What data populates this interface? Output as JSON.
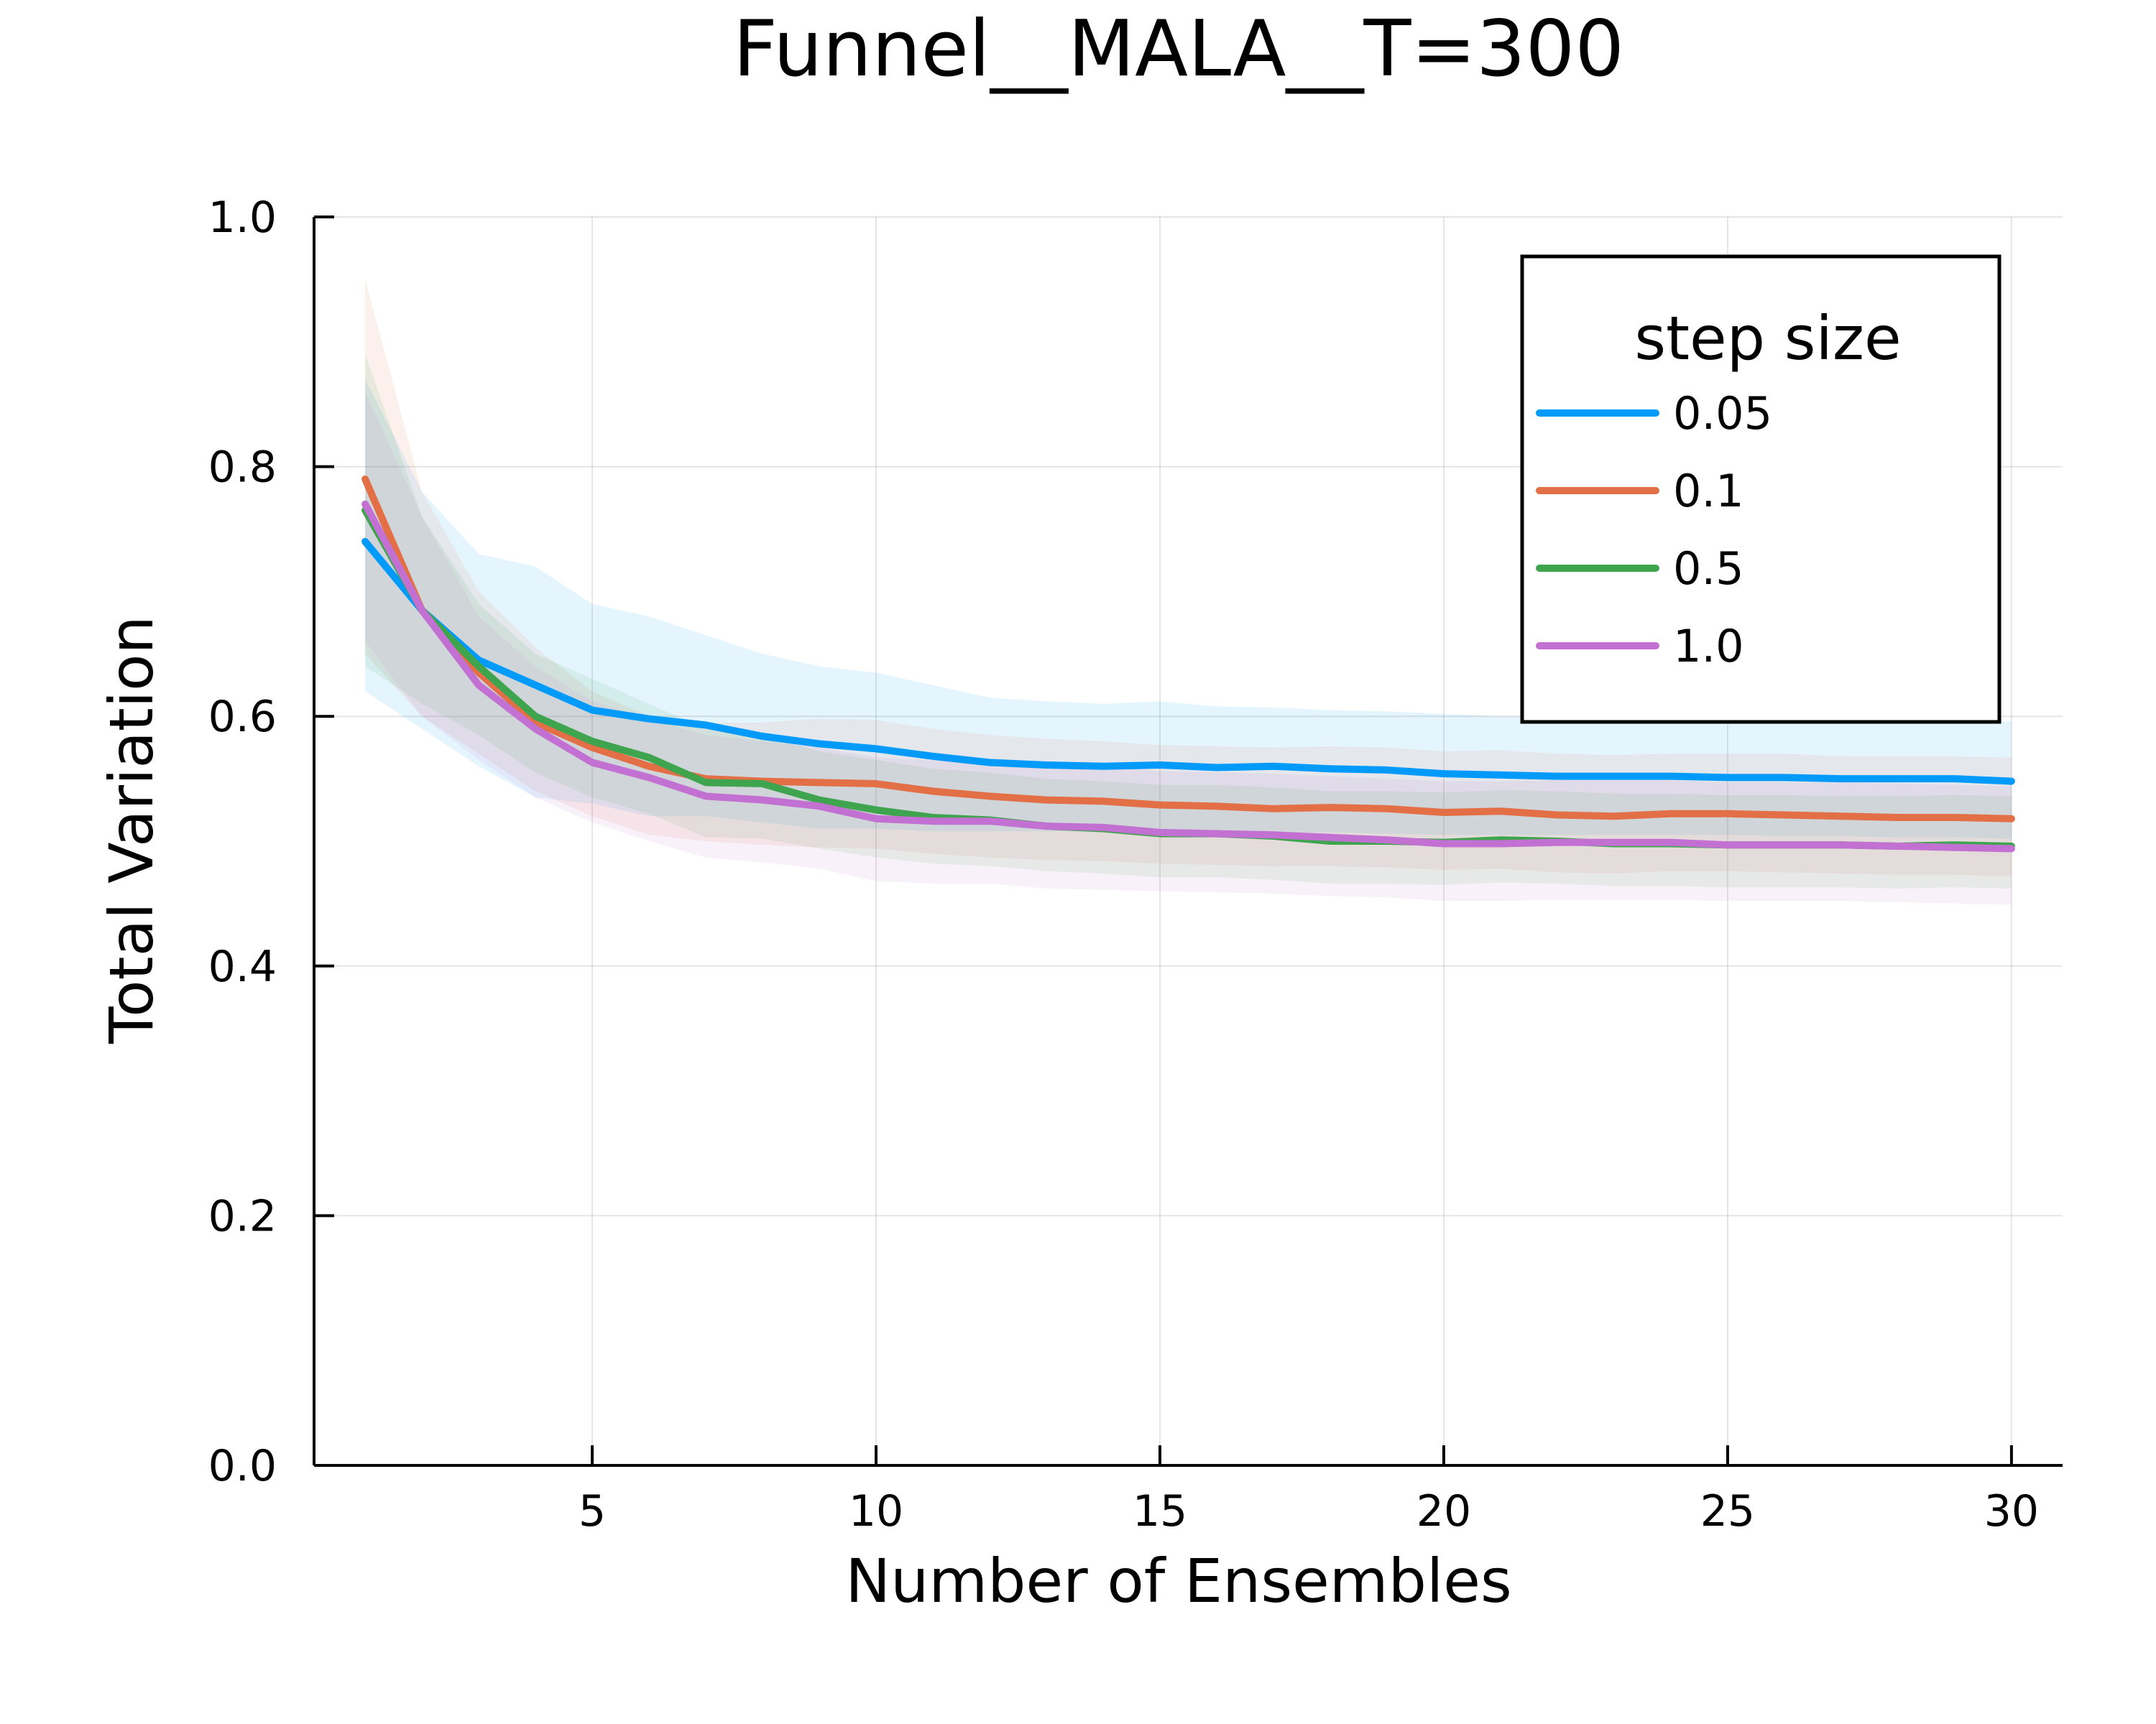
{
  "chart_data": {
    "type": "line",
    "title": "Funnel__MALA__T=300",
    "xlabel": "Number of Ensembles",
    "ylabel": "Total Variation",
    "xlim": [
      0.1,
      30.9
    ],
    "ylim": [
      0,
      1
    ],
    "xticks": [
      5,
      10,
      15,
      20,
      25,
      30
    ],
    "yticks": [
      0.0,
      0.2,
      0.4,
      0.6,
      0.8,
      1.0
    ],
    "xtick_labels": [
      "5",
      "10",
      "15",
      "20",
      "25",
      "30"
    ],
    "ytick_labels": [
      "0.0",
      "0.2",
      "0.4",
      "0.6",
      "0.8",
      "1.0"
    ],
    "grid": true,
    "legend": {
      "title": "step size",
      "position": "top-right"
    },
    "x": [
      1,
      2,
      3,
      4,
      5,
      6,
      7,
      8,
      9,
      10,
      11,
      12,
      13,
      14,
      15,
      16,
      17,
      18,
      19,
      20,
      21,
      22,
      23,
      24,
      25,
      26,
      27,
      28,
      29,
      30
    ],
    "series": [
      {
        "name": "0.05",
        "color": "#009AFA",
        "values": [
          0.74,
          0.685,
          0.645,
          0.625,
          0.605,
          0.598,
          0.593,
          0.584,
          0.578,
          0.574,
          0.568,
          0.563,
          0.561,
          0.56,
          0.561,
          0.559,
          0.56,
          0.558,
          0.557,
          0.554,
          0.553,
          0.552,
          0.552,
          0.552,
          0.551,
          0.551,
          0.55,
          0.55,
          0.55,
          0.548
        ],
        "upper": [
          0.87,
          0.78,
          0.73,
          0.72,
          0.69,
          0.68,
          0.665,
          0.65,
          0.64,
          0.635,
          0.625,
          0.615,
          0.612,
          0.61,
          0.612,
          0.608,
          0.607,
          0.605,
          0.604,
          0.602,
          0.6,
          0.6,
          0.599,
          0.599,
          0.598,
          0.598,
          0.597,
          0.597,
          0.597,
          0.596
        ],
        "lower": [
          0.62,
          0.59,
          0.56,
          0.535,
          0.53,
          0.52,
          0.52,
          0.515,
          0.51,
          0.51,
          0.508,
          0.508,
          0.508,
          0.508,
          0.508,
          0.508,
          0.507,
          0.507,
          0.506,
          0.505,
          0.505,
          0.505,
          0.505,
          0.505,
          0.505,
          0.504,
          0.504,
          0.503,
          0.503,
          0.502
        ]
      },
      {
        "name": "0.1",
        "color": "#E36F47",
        "values": [
          0.79,
          0.685,
          0.635,
          0.595,
          0.575,
          0.56,
          0.55,
          0.548,
          0.547,
          0.546,
          0.54,
          0.536,
          0.533,
          0.532,
          0.529,
          0.528,
          0.526,
          0.527,
          0.526,
          0.523,
          0.524,
          0.521,
          0.52,
          0.522,
          0.522,
          0.521,
          0.52,
          0.519,
          0.519,
          0.518
        ],
        "upper": [
          0.95,
          0.78,
          0.7,
          0.655,
          0.62,
          0.6,
          0.595,
          0.595,
          0.598,
          0.597,
          0.59,
          0.585,
          0.582,
          0.58,
          0.577,
          0.576,
          0.575,
          0.576,
          0.575,
          0.572,
          0.573,
          0.57,
          0.569,
          0.57,
          0.57,
          0.57,
          0.568,
          0.568,
          0.568,
          0.567
        ],
        "lower": [
          0.65,
          0.6,
          0.57,
          0.54,
          0.52,
          0.505,
          0.5,
          0.497,
          0.495,
          0.494,
          0.49,
          0.487,
          0.485,
          0.484,
          0.482,
          0.481,
          0.48,
          0.48,
          0.479,
          0.477,
          0.478,
          0.475,
          0.474,
          0.476,
          0.476,
          0.475,
          0.474,
          0.473,
          0.473,
          0.472
        ]
      },
      {
        "name": "0.5",
        "color": "#3EA44E",
        "values": [
          0.765,
          0.685,
          0.64,
          0.6,
          0.58,
          0.567,
          0.547,
          0.546,
          0.533,
          0.525,
          0.519,
          0.517,
          0.512,
          0.51,
          0.506,
          0.506,
          0.504,
          0.5,
          0.5,
          0.499,
          0.501,
          0.5,
          0.498,
          0.498,
          0.497,
          0.497,
          0.497,
          0.496,
          0.497,
          0.496
        ],
        "upper": [
          0.89,
          0.76,
          0.69,
          0.65,
          0.63,
          0.61,
          0.59,
          0.585,
          0.572,
          0.565,
          0.558,
          0.555,
          0.55,
          0.548,
          0.545,
          0.545,
          0.543,
          0.54,
          0.54,
          0.539,
          0.541,
          0.54,
          0.538,
          0.538,
          0.537,
          0.537,
          0.536,
          0.536,
          0.537,
          0.536
        ],
        "lower": [
          0.64,
          0.61,
          0.585,
          0.555,
          0.535,
          0.522,
          0.503,
          0.502,
          0.494,
          0.487,
          0.482,
          0.48,
          0.476,
          0.474,
          0.471,
          0.471,
          0.469,
          0.466,
          0.466,
          0.465,
          0.467,
          0.466,
          0.464,
          0.464,
          0.463,
          0.463,
          0.463,
          0.462,
          0.463,
          0.462
        ]
      },
      {
        "name": "1.0",
        "color": "#C271D2",
        "values": [
          0.77,
          0.685,
          0.625,
          0.59,
          0.563,
          0.551,
          0.536,
          0.533,
          0.528,
          0.518,
          0.516,
          0.516,
          0.512,
          0.511,
          0.507,
          0.506,
          0.505,
          0.503,
          0.501,
          0.498,
          0.498,
          0.499,
          0.499,
          0.499,
          0.497,
          0.497,
          0.497,
          0.496,
          0.495,
          0.494
        ],
        "upper": [
          0.86,
          0.76,
          0.68,
          0.64,
          0.612,
          0.598,
          0.585,
          0.58,
          0.575,
          0.567,
          0.565,
          0.564,
          0.56,
          0.56,
          0.556,
          0.555,
          0.554,
          0.552,
          0.55,
          0.548,
          0.548,
          0.549,
          0.549,
          0.549,
          0.547,
          0.547,
          0.547,
          0.546,
          0.545,
          0.544
        ],
        "lower": [
          0.66,
          0.6,
          0.565,
          0.535,
          0.515,
          0.5,
          0.487,
          0.483,
          0.478,
          0.468,
          0.466,
          0.466,
          0.462,
          0.461,
          0.46,
          0.459,
          0.458,
          0.456,
          0.455,
          0.452,
          0.452,
          0.453,
          0.453,
          0.453,
          0.452,
          0.452,
          0.452,
          0.451,
          0.45,
          0.449
        ]
      }
    ]
  }
}
